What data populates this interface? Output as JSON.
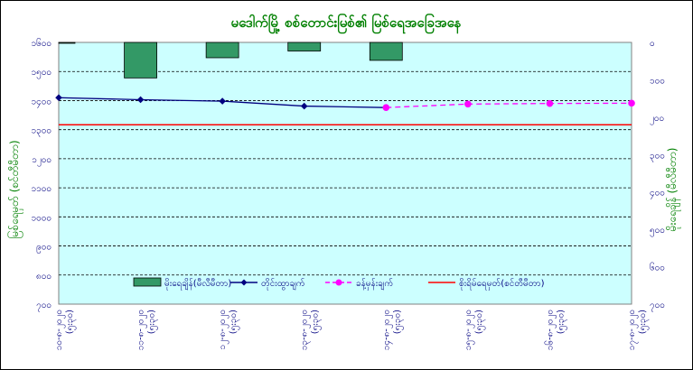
{
  "chart_data": {
    "type": "line",
    "title": "မဒေါက်မြို့ စစ်တောင်းမြစ်၏ မြစ်ရေအခြေအနေ",
    "left_axis": {
      "label": "မြစ်ရေမှတ် (စင်တီမီတာ)",
      "range": [
        700,
        1600
      ],
      "tick_labels": [
        "၁၆၀၀",
        "၁၅၀၀",
        "၁၄၀၀",
        "၁၃၀၀",
        "၁၂၀၀",
        "၁၁၀၀",
        "၁၀၀၀",
        "၉၀၀",
        "၈၀၀",
        "၇၀၀"
      ]
    },
    "right_axis": {
      "label": "မိုးရေချိန် (မီလီမီတာ)",
      "range": [
        0,
        700
      ],
      "inverted": true,
      "tick_labels": [
        "၀",
        "၁၀၀",
        "၂၀၀",
        "၃၀၀",
        "၄၀၀",
        "၅၀၀",
        "၆၀၀",
        "၇၀၀"
      ]
    },
    "categories": [
      "၁၀-၈-၂၀၂၀ (၅း၃၀)",
      "၁၁-၈-၂၀၂၀ (၅း၃၀)",
      "၁၂-၈-၂၀၂၀ (၅း၃၀)",
      "၁၃-၈-၂၀၂၀ (၅း၃၀)",
      "၁၄-၈-၂၀၂၀ (၅း၃၀)",
      "၁၅-၈-၂၀၂၀ (၅း၃၀)",
      "၁၆-၈-၂၀၂၀ (၅း၃၀)",
      "၁၇-၈-၂၀၂၀ (၅း၃၀)"
    ],
    "series": [
      {
        "name": "မိုးရေချိန်(မီလီမီတာ)",
        "type": "bar",
        "axis": "right",
        "color": "#339966",
        "values": [
          1,
          95,
          41,
          23,
          48,
          null,
          null,
          null
        ]
      },
      {
        "name": "တိုင်းထွာချက်",
        "type": "line",
        "axis": "left",
        "color": "#000080",
        "values": [
          1410,
          1403,
          1398,
          1381,
          1376,
          null,
          null,
          null
        ]
      },
      {
        "name": "ခန့်မှန်းချက်",
        "type": "line",
        "axis": "left",
        "color": "#ff00ff",
        "dashed": true,
        "values": [
          null,
          null,
          null,
          null,
          1376,
          1388,
          1390,
          1391
        ]
      },
      {
        "name": "စိုးရိမ်ရေမှတ်(စင်တီမီတာ)",
        "type": "line",
        "axis": "left",
        "color": "#ff0000",
        "values": [
          1317,
          1317,
          1317,
          1317,
          1317,
          1317,
          1317,
          1317
        ]
      }
    ],
    "grid": true,
    "legend_position": "bottom"
  }
}
